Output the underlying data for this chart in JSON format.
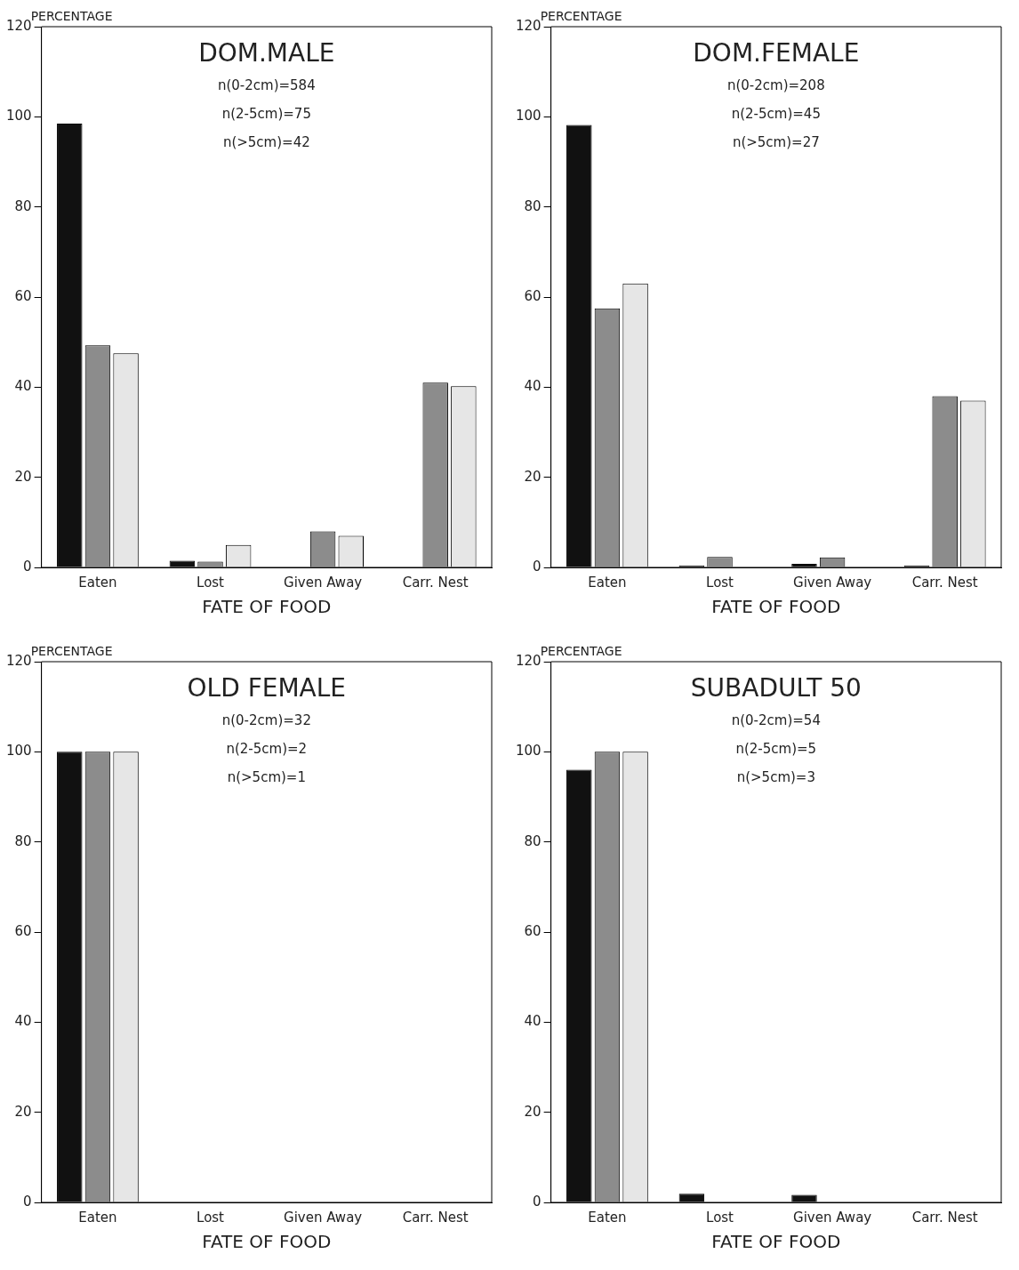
{
  "chart_data": [
    {
      "type": "bar",
      "title": "DOM.MALE",
      "annotations": [
        "n(0-2cm)=584",
        "n(2-5cm)=75",
        "n(>5cm)=42"
      ],
      "xlabel": "FATE OF FOOD",
      "ylabel": "PERCENTAGE",
      "categories": [
        "Eaten",
        "Lost",
        "Given Away",
        "Carr. Nest"
      ],
      "ylim": [
        0,
        120
      ],
      "yticks": [
        0,
        20,
        40,
        60,
        80,
        100,
        120
      ],
      "grid": false,
      "legend": false,
      "series": [
        {
          "color": "#111111",
          "values": [
            98.5,
            1.5,
            0,
            0
          ]
        },
        {
          "color": "#8c8c8c",
          "values": [
            49.3,
            1.3,
            8,
            41
          ]
        },
        {
          "color": "#e6e6e6",
          "values": [
            47.5,
            5,
            7,
            40.2
          ]
        }
      ]
    },
    {
      "type": "bar",
      "title": "DOM.FEMALE",
      "annotations": [
        "n(0-2cm)=208",
        "n(2-5cm)=45",
        "n(>5cm)=27"
      ],
      "xlabel": "FATE OF FOOD",
      "ylabel": "PERCENTAGE",
      "categories": [
        "Eaten",
        "Lost",
        "Given Away",
        "Carr. Nest"
      ],
      "ylim": [
        0,
        120
      ],
      "yticks": [
        0,
        20,
        40,
        60,
        80,
        100,
        120
      ],
      "grid": false,
      "legend": false,
      "series": [
        {
          "color": "#111111",
          "values": [
            98.2,
            0.4,
            0.8,
            0.4
          ]
        },
        {
          "color": "#8c8c8c",
          "values": [
            57.5,
            2.3,
            2.2,
            38
          ]
        },
        {
          "color": "#e6e6e6",
          "values": [
            63,
            0,
            0,
            37
          ]
        }
      ]
    },
    {
      "type": "bar",
      "title": "OLD FEMALE",
      "annotations": [
        "n(0-2cm)=32",
        "n(2-5cm)=2",
        "n(>5cm)=1"
      ],
      "xlabel": "FATE OF FOOD",
      "ylabel": "PERCENTAGE",
      "categories": [
        "Eaten",
        "Lost",
        "Given Away",
        "Carr. Nest"
      ],
      "ylim": [
        0,
        120
      ],
      "yticks": [
        0,
        20,
        40,
        60,
        80,
        100,
        120
      ],
      "grid": false,
      "legend": false,
      "series": [
        {
          "color": "#111111",
          "values": [
            100,
            0,
            0,
            0
          ]
        },
        {
          "color": "#8c8c8c",
          "values": [
            100,
            0,
            0,
            0
          ]
        },
        {
          "color": "#e6e6e6",
          "values": [
            100,
            0,
            0,
            0
          ]
        }
      ]
    },
    {
      "type": "bar",
      "title": "SUBADULT 50",
      "annotations": [
        "n(0-2cm)=54",
        "n(2-5cm)=5",
        "n(>5cm)=3"
      ],
      "xlabel": "FATE OF FOOD",
      "ylabel": "PERCENTAGE",
      "categories": [
        "Eaten",
        "Lost",
        "Given Away",
        "Carr. Nest"
      ],
      "ylim": [
        0,
        120
      ],
      "yticks": [
        0,
        20,
        40,
        60,
        80,
        100,
        120
      ],
      "grid": false,
      "legend": false,
      "series": [
        {
          "color": "#111111",
          "values": [
            96,
            1.9,
            1.7,
            0
          ]
        },
        {
          "color": "#8c8c8c",
          "values": [
            100,
            0,
            0,
            0
          ]
        },
        {
          "color": "#e6e6e6",
          "values": [
            100,
            0,
            0,
            0
          ]
        }
      ]
    }
  ]
}
